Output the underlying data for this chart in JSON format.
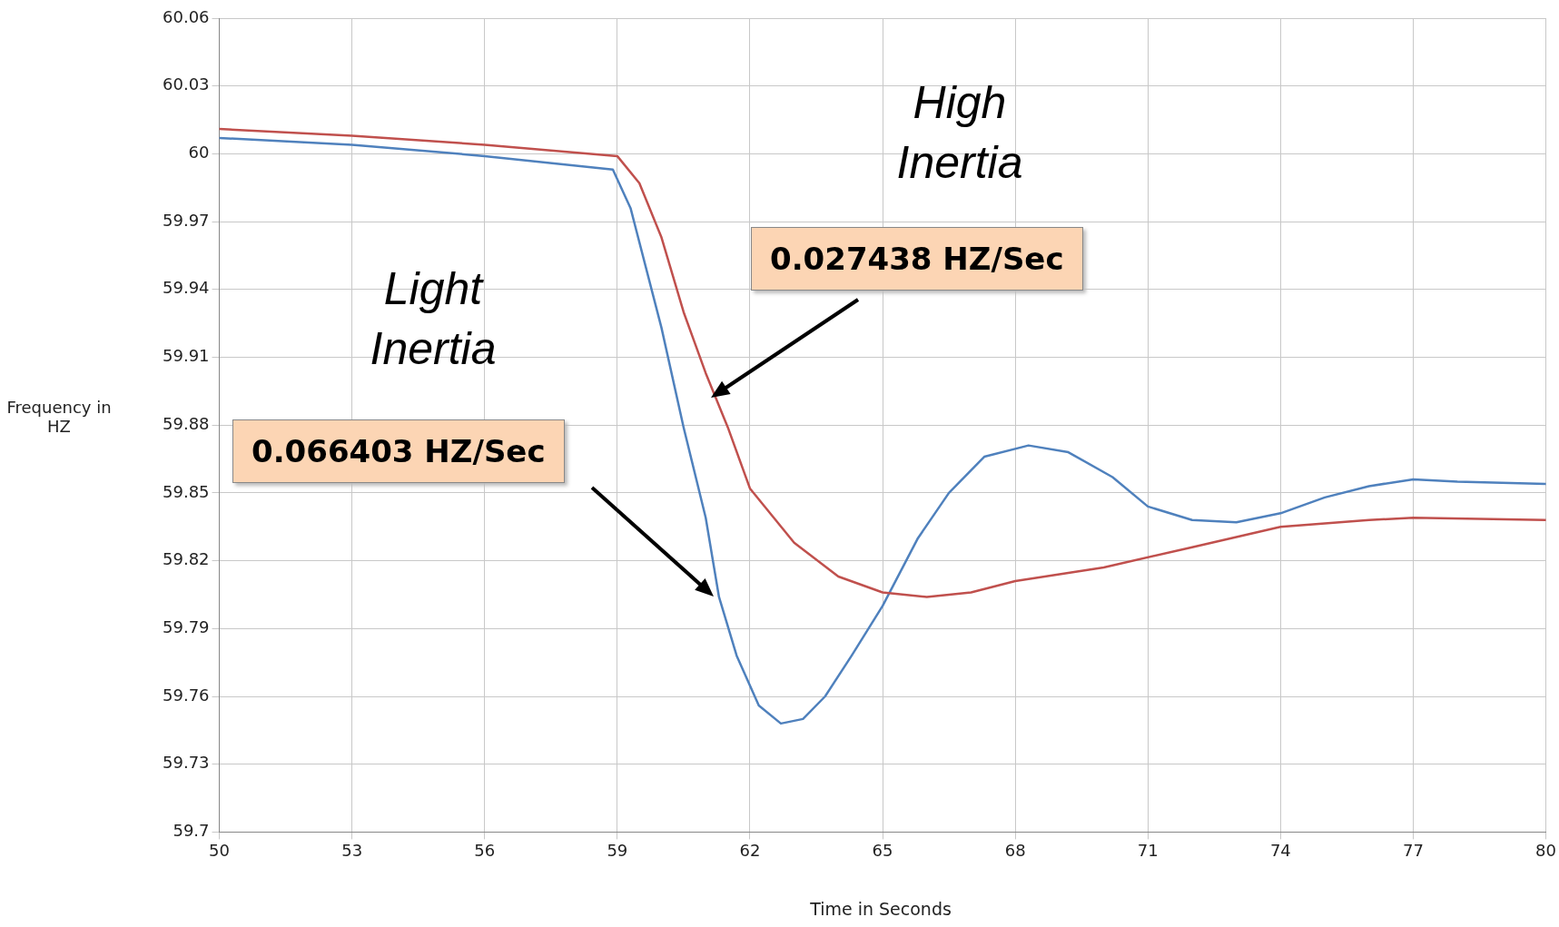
{
  "chart_data": {
    "type": "line",
    "xlabel": "Time in Seconds",
    "ylabel": "Frequency in HZ",
    "xlim": [
      50,
      80
    ],
    "xticks": [
      50,
      53,
      56,
      59,
      62,
      65,
      68,
      71,
      74,
      77,
      80
    ],
    "ylim": [
      59.7,
      60.06
    ],
    "yticks": [
      59.7,
      59.73,
      59.76,
      59.79,
      59.82,
      59.85,
      59.88,
      59.91,
      59.94,
      59.97,
      60,
      60.03,
      60.06
    ],
    "grid": true,
    "legend": false,
    "marker": "none",
    "line_style": "solid",
    "series": [
      {
        "color": "#c0504d",
        "x": [
          50,
          53,
          56,
          59,
          59.5,
          60,
          60.5,
          61,
          61.5,
          62,
          63,
          64,
          65,
          66,
          67,
          68,
          70,
          72,
          74,
          76,
          77,
          80
        ],
        "values": [
          60.011,
          60.008,
          60.004,
          59.999,
          59.987,
          59.963,
          59.93,
          59.903,
          59.879,
          59.852,
          59.828,
          59.813,
          59.806,
          59.804,
          59.806,
          59.811,
          59.817,
          59.826,
          59.835,
          59.838,
          59.839,
          59.838
        ]
      },
      {
        "color": "#4f81bd",
        "x": [
          50,
          53,
          56,
          58.9,
          59.3,
          60,
          60.5,
          61,
          61.3,
          61.7,
          62.2,
          62.7,
          63.2,
          63.7,
          64.3,
          65,
          65.8,
          66.5,
          67.3,
          68.3,
          69.2,
          70.2,
          71,
          72,
          73,
          74,
          75,
          76,
          77,
          78,
          80
        ],
        "values": [
          60.007,
          60.004,
          59.999,
          59.993,
          59.976,
          59.923,
          59.879,
          59.839,
          59.804,
          59.778,
          59.756,
          59.748,
          59.75,
          59.76,
          59.778,
          59.8,
          59.83,
          59.85,
          59.866,
          59.871,
          59.868,
          59.857,
          59.844,
          59.838,
          59.837,
          59.841,
          59.848,
          59.853,
          59.856,
          59.855,
          59.854
        ]
      }
    ],
    "annotations": [
      "High Inertia",
      "Light Inertia",
      "0.027438 HZ/Sec",
      "0.066403 HZ/Sec"
    ]
  }
}
